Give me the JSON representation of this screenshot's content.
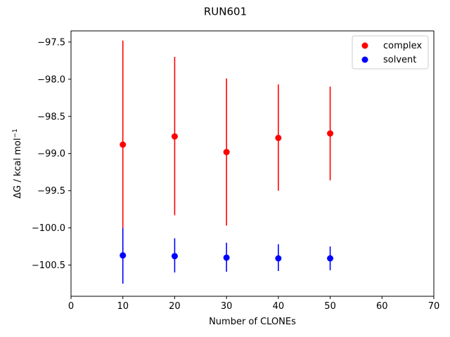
{
  "chart_data": {
    "type": "scatter",
    "title": "RUN601",
    "xlabel": "Number of CLONEs",
    "ylabel_main": "ΔG / kcal mol",
    "ylabel_sup": "−1",
    "xlim": [
      0,
      70
    ],
    "ylim": [
      -100.92,
      -97.35
    ],
    "xticks": [
      0,
      10,
      20,
      30,
      40,
      50,
      60,
      70
    ],
    "yticks": [
      -97.5,
      -98.0,
      -98.5,
      -99.0,
      -99.5,
      -100.0,
      -100.5
    ],
    "ytick_labels": [
      "−97.5",
      "−98.0",
      "−98.5",
      "−99.0",
      "−99.5",
      "−100.0",
      "−100.5"
    ],
    "grid": false,
    "legend_position": "upper right",
    "series": [
      {
        "name": "complex",
        "color": "#ff0000",
        "x": [
          10,
          20,
          30,
          40,
          50
        ],
        "y": [
          -98.88,
          -98.77,
          -98.98,
          -98.79,
          -98.73
        ],
        "err_low": [
          -100.0,
          -99.83,
          -99.97,
          -99.5,
          -99.36
        ],
        "err_high": [
          -97.48,
          -97.7,
          -97.99,
          -98.07,
          -98.1
        ]
      },
      {
        "name": "solvent",
        "color": "#0000ff",
        "x": [
          10,
          20,
          30,
          40,
          50
        ],
        "y": [
          -100.37,
          -100.38,
          -100.4,
          -100.41,
          -100.41
        ],
        "err_low": [
          -100.75,
          -100.6,
          -100.59,
          -100.58,
          -100.57
        ],
        "err_high": [
          -100.0,
          -100.14,
          -100.2,
          -100.22,
          -100.25
        ]
      }
    ]
  }
}
